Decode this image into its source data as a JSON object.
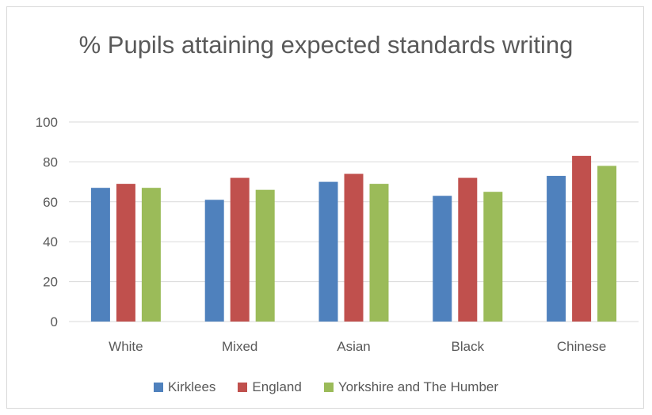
{
  "chart_data": {
    "type": "bar",
    "title": "% Pupils attaining expected standards writing",
    "xlabel": "",
    "ylabel": "",
    "categories": [
      "White",
      "Mixed",
      "Asian",
      "Black",
      "Chinese"
    ],
    "series": [
      {
        "name": "Kirklees",
        "color": "#4f81bd",
        "values": [
          67,
          61,
          70,
          63,
          73
        ]
      },
      {
        "name": "England",
        "color": "#c0504d",
        "values": [
          69,
          72,
          74,
          72,
          83
        ]
      },
      {
        "name": "Yorkshire and The Humber",
        "color": "#9bbb59",
        "values": [
          67,
          66,
          69,
          65,
          78
        ]
      }
    ],
    "ylim": [
      0,
      100
    ],
    "yticks": [
      "0",
      "20",
      "40",
      "60",
      "80",
      "100"
    ],
    "grid": true,
    "legend": "bottom",
    "colors": {
      "gridline": "#d9d9d9",
      "text": "#595959"
    }
  }
}
